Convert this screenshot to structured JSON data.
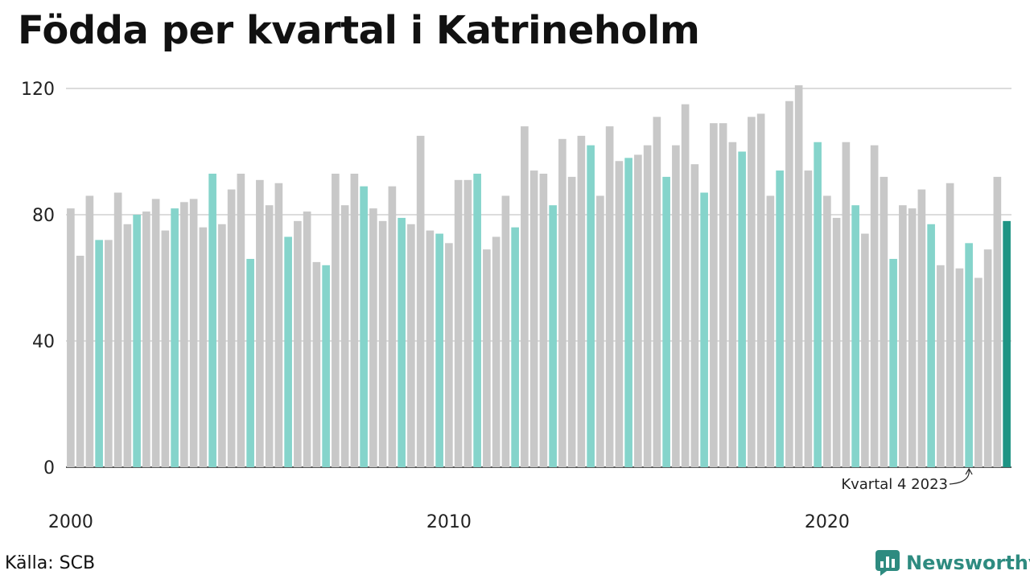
{
  "title": "Födda per kvartal i Katrineholm",
  "source": "Källa: SCB",
  "brand": "Newsworthy",
  "colors": {
    "default": "#c8c8c8",
    "q4": "#85d4cb",
    "highlight": "#1f9484",
    "brand": "#2e8b80"
  },
  "chart_data": {
    "type": "bar",
    "title": "Födda per kvartal i Katrineholm",
    "xlabel": "",
    "ylabel": "",
    "ylim": [
      0,
      120
    ],
    "yticks": [
      0,
      40,
      80,
      120
    ],
    "xticks": [
      "2000",
      "2010",
      "2020"
    ],
    "grid": true,
    "start_year": 2000,
    "categories": [
      "2000 Q1",
      "2000 Q2",
      "2000 Q3",
      "2000 Q4",
      "2001 Q1",
      "2001 Q2",
      "2001 Q3",
      "2001 Q4",
      "2002 Q1",
      "2002 Q2",
      "2002 Q3",
      "2002 Q4",
      "2003 Q1",
      "2003 Q2",
      "2003 Q3",
      "2003 Q4",
      "2004 Q1",
      "2004 Q2",
      "2004 Q3",
      "2004 Q4",
      "2005 Q1",
      "2005 Q2",
      "2005 Q3",
      "2005 Q4",
      "2006 Q1",
      "2006 Q2",
      "2006 Q3",
      "2006 Q4",
      "2007 Q1",
      "2007 Q2",
      "2007 Q3",
      "2007 Q4",
      "2008 Q1",
      "2008 Q2",
      "2008 Q3",
      "2008 Q4",
      "2009 Q1",
      "2009 Q2",
      "2009 Q3",
      "2009 Q4",
      "2010 Q1",
      "2010 Q2",
      "2010 Q3",
      "2010 Q4",
      "2011 Q1",
      "2011 Q2",
      "2011 Q3",
      "2011 Q4",
      "2012 Q1",
      "2012 Q2",
      "2012 Q3",
      "2012 Q4",
      "2013 Q1",
      "2013 Q2",
      "2013 Q3",
      "2013 Q4",
      "2014 Q1",
      "2014 Q2",
      "2014 Q3",
      "2014 Q4",
      "2015 Q1",
      "2015 Q2",
      "2015 Q3",
      "2015 Q4",
      "2016 Q1",
      "2016 Q2",
      "2016 Q3",
      "2016 Q4",
      "2017 Q1",
      "2017 Q2",
      "2017 Q3",
      "2017 Q4",
      "2018 Q1",
      "2018 Q2",
      "2018 Q3",
      "2018 Q4",
      "2019 Q1",
      "2019 Q2",
      "2019 Q3",
      "2019 Q4",
      "2020 Q1",
      "2020 Q2",
      "2020 Q3",
      "2020 Q4",
      "2021 Q1",
      "2021 Q2",
      "2021 Q3",
      "2021 Q4",
      "2022 Q1",
      "2022 Q2",
      "2022 Q3",
      "2022 Q4",
      "2023 Q1",
      "2023 Q2",
      "2023 Q3",
      "2023 Q4",
      "2024 Q1",
      "2024 Q2",
      "2024 Q3",
      "2024 Q4"
    ],
    "values": [
      82,
      67,
      86,
      72,
      72,
      87,
      77,
      80,
      81,
      85,
      75,
      82,
      84,
      85,
      76,
      93,
      77,
      88,
      93,
      66,
      91,
      83,
      90,
      73,
      78,
      81,
      65,
      64,
      93,
      83,
      93,
      89,
      82,
      78,
      89,
      79,
      77,
      105,
      75,
      74,
      71,
      91,
      91,
      93,
      69,
      73,
      86,
      76,
      108,
      94,
      93,
      83,
      104,
      92,
      105,
      102,
      86,
      108,
      97,
      98,
      99,
      102,
      111,
      92,
      102,
      115,
      96,
      87,
      109,
      109,
      103,
      100,
      111,
      112,
      86,
      94,
      116,
      121,
      94,
      103,
      86,
      79,
      103,
      83,
      74,
      102,
      92,
      66,
      83,
      82,
      88,
      77,
      64,
      90,
      63,
      71,
      60,
      69,
      92,
      78
    ],
    "highlight_index": 99,
    "annotation": {
      "text": "Kvartal 4 2023",
      "target_index": 95
    }
  }
}
